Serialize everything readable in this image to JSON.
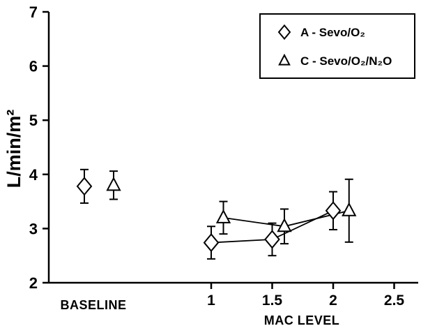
{
  "chart_data": {
    "type": "scatter",
    "xlabel": "MAC LEVEL",
    "ylabel": "L/min/m²",
    "baseline_label": "BASELINE",
    "ylim": [
      2,
      7
    ],
    "yticks": [
      2,
      3,
      4,
      5,
      6,
      7
    ],
    "xticks": [
      1,
      1.5,
      2,
      2.5
    ],
    "xtick_labels": [
      "1",
      "1.5",
      "2",
      "2.5"
    ],
    "grid": false,
    "error_bars": true,
    "legend_position": "top-right",
    "series": [
      {
        "name": "A - Sevo/O₂",
        "marker": "diamond",
        "baseline": {
          "y": 3.78,
          "err": 0.31
        },
        "points": [
          {
            "x": 1.0,
            "y": 2.74,
            "err": 0.3
          },
          {
            "x": 1.5,
            "y": 2.8,
            "err": 0.3
          },
          {
            "x": 2.0,
            "y": 3.33,
            "err": 0.35
          }
        ]
      },
      {
        "name": "C - Sevo/O₂/N₂O",
        "marker": "triangle",
        "baseline": {
          "y": 3.8,
          "err": 0.26
        },
        "points": [
          {
            "x": 1.1,
            "y": 3.2,
            "err": 0.3
          },
          {
            "x": 1.6,
            "y": 3.04,
            "err": 0.32
          },
          {
            "x": 2.13,
            "y": 3.33,
            "err": 0.58
          }
        ]
      }
    ]
  }
}
